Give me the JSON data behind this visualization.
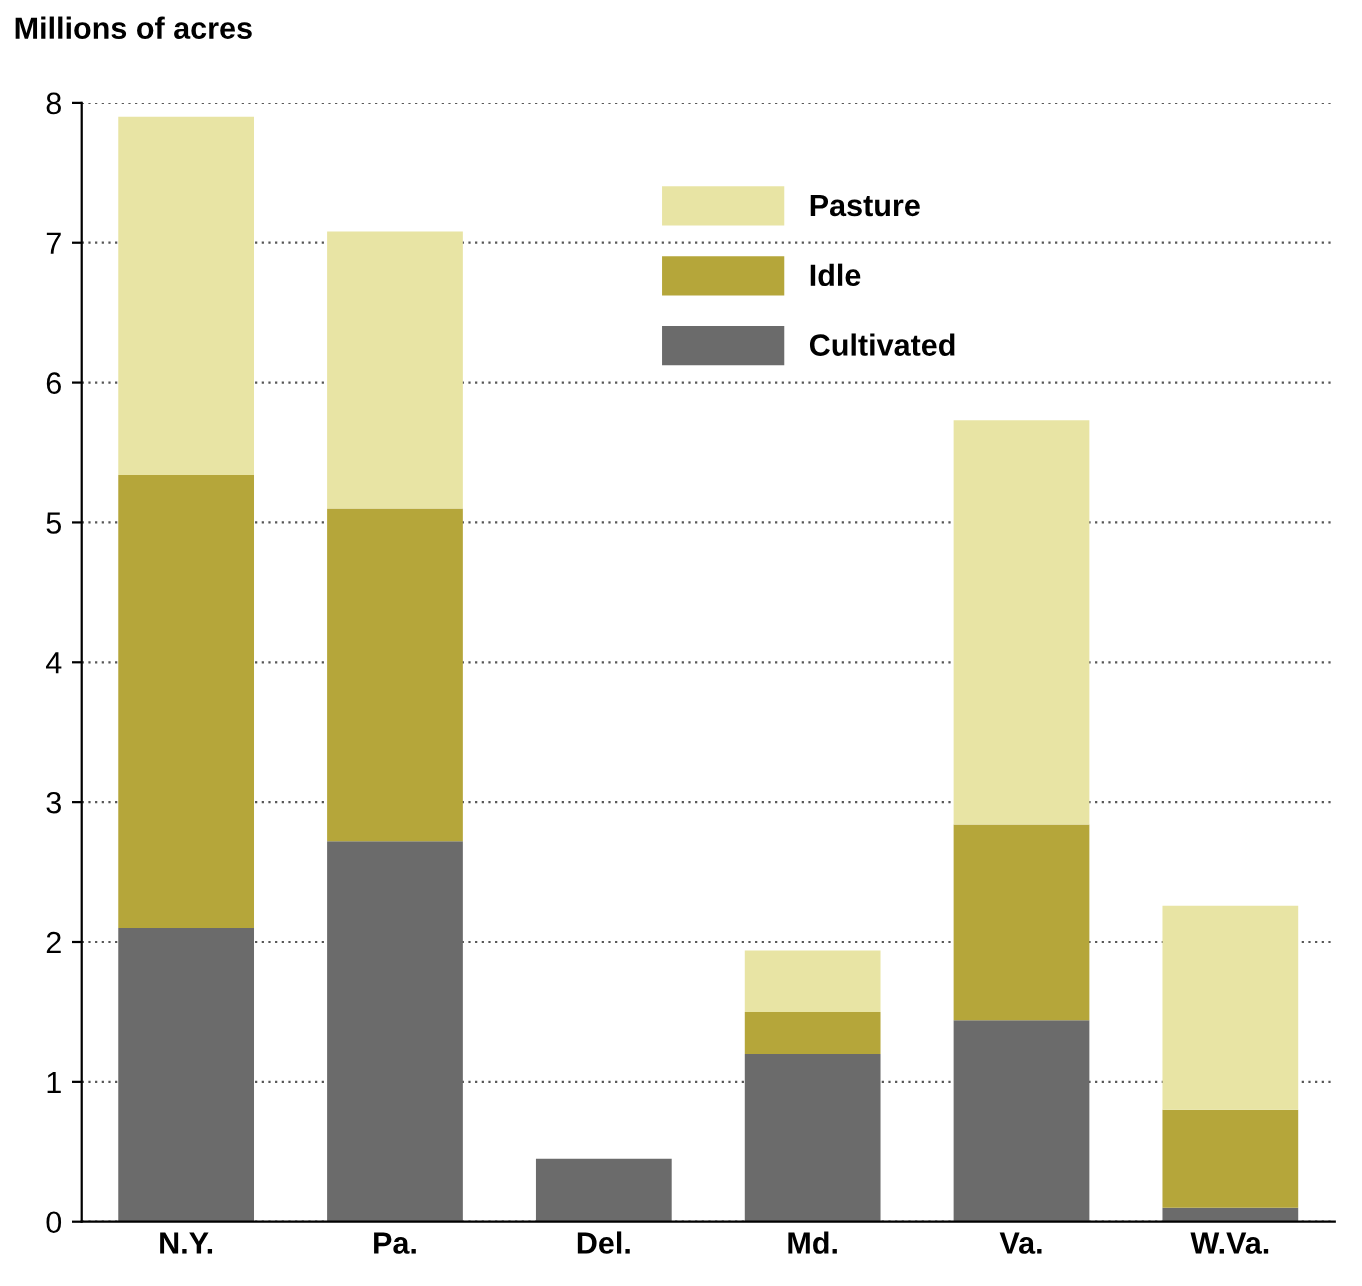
{
  "chart_data": {
    "type": "bar",
    "ylabel": "Millions of acres",
    "categories": [
      "N.Y.",
      "Pa.",
      "Del.",
      "Md.",
      "Va.",
      "W.Va."
    ],
    "stacked": true,
    "series": [
      {
        "name": "Cultivated",
        "color": "#6b6b6b",
        "values": [
          2.1,
          2.72,
          0.45,
          1.2,
          1.44,
          0.1
        ]
      },
      {
        "name": "Idle",
        "color": "#b5a63a",
        "values": [
          3.24,
          2.38,
          0,
          0.3,
          1.4,
          0.7
        ]
      },
      {
        "name": "Pasture",
        "color": "#e8e4a4",
        "values": [
          2.56,
          1.98,
          0,
          0.44,
          2.89,
          1.46
        ]
      }
    ],
    "ylim": [
      0,
      8
    ],
    "yticks": [
      0,
      1,
      2,
      3,
      4,
      5,
      6,
      7,
      8
    ],
    "grid": "y",
    "legend": "top right"
  }
}
